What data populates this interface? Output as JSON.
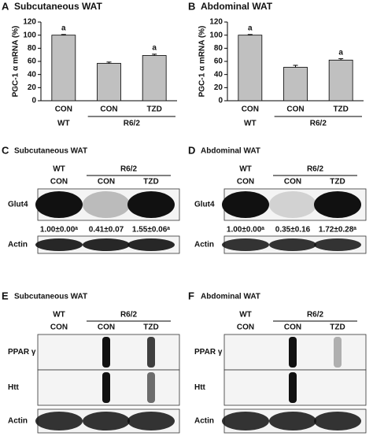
{
  "chart_data": [
    {
      "type": "bar",
      "panel": "A",
      "title": "Subcutaneous WAT",
      "y_label": "PGC-1 α mRNA (%)",
      "categories": [
        "CON",
        "CON",
        "TZD"
      ],
      "groups": [
        "WT",
        "R6/2"
      ],
      "values": [
        100,
        57,
        69
      ],
      "errors": [
        1,
        2,
        2
      ],
      "sig_labels": [
        "a",
        null,
        "a"
      ],
      "color": "#c0c0c0",
      "ylim": [
        0,
        120
      ],
      "yticks": [
        0,
        20,
        40,
        60,
        80,
        100,
        120
      ]
    },
    {
      "type": "bar",
      "panel": "B",
      "title": "Abdominal WAT",
      "y_label": "PGC-1 α mRNA (%)",
      "categories": [
        "CON",
        "CON",
        "TZD"
      ],
      "groups": [
        "WT",
        "R6/2"
      ],
      "values": [
        100,
        51,
        62
      ],
      "errors": [
        1,
        3,
        2
      ],
      "sig_labels": [
        "a",
        null,
        "a"
      ],
      "color": "#c0c0c0",
      "ylim": [
        0,
        120
      ],
      "yticks": [
        0,
        20,
        40,
        60,
        80,
        100,
        120
      ]
    }
  ],
  "blots": [
    {
      "panel": "C",
      "title": "Subcutaneous WAT",
      "group_labels": [
        "WT",
        "R6/2"
      ],
      "lanes": [
        "CON",
        "CON",
        "TZD"
      ],
      "rows": [
        "Glut4",
        "Actin"
      ],
      "quantification": [
        "1.00±0.00ᵃ",
        "0.41±0.07",
        "1.55±0.06ᵃ"
      ]
    },
    {
      "panel": "D",
      "title": "Abdominal WAT",
      "group_labels": [
        "WT",
        "R6/2"
      ],
      "lanes": [
        "CON",
        "CON",
        "TZD"
      ],
      "rows": [
        "Glut4",
        "Actin"
      ],
      "quantification": [
        "1.00±0.00ᵃ",
        "0.35±0.16",
        "1.72±0.28ᵃ"
      ]
    },
    {
      "panel": "E",
      "title": "Subcutaneous WAT",
      "group_labels": [
        "WT",
        "R6/2"
      ],
      "lanes": [
        "CON",
        "CON",
        "TZD"
      ],
      "rows": [
        "PPAR γ",
        "Htt",
        "Actin"
      ]
    },
    {
      "panel": "F",
      "title": "Abdominal WAT",
      "group_labels": [
        "WT",
        "R6/2"
      ],
      "lanes": [
        "CON",
        "CON",
        "TZD"
      ],
      "rows": [
        "PPAR γ",
        "Htt",
        "Actin"
      ]
    }
  ]
}
